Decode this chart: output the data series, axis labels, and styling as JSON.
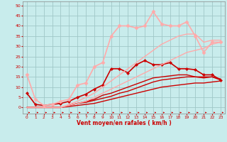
{
  "title": "",
  "xlabel": "Vent moyen/en rafales ( km/h )",
  "bg_color": "#c8ecec",
  "grid_color": "#a0c8c8",
  "x_ticks": [
    0,
    1,
    2,
    3,
    4,
    5,
    6,
    7,
    8,
    9,
    10,
    11,
    12,
    13,
    14,
    15,
    16,
    17,
    18,
    19,
    20,
    21,
    22,
    23
  ],
  "y_ticks": [
    0,
    5,
    10,
    15,
    20,
    25,
    30,
    35,
    40,
    45,
    50
  ],
  "ylim": [
    -3,
    52
  ],
  "xlim": [
    -0.5,
    23.5
  ],
  "series": [
    {
      "x": [
        0,
        1,
        2,
        3,
        4,
        5,
        6,
        7,
        8,
        9,
        10,
        11,
        12,
        13,
        14,
        15,
        16,
        17,
        18,
        19,
        20,
        21,
        22,
        23
      ],
      "y": [
        0,
        0,
        0,
        0,
        0,
        0.5,
        1,
        1.5,
        2,
        3,
        4,
        5,
        6,
        7,
        8,
        9,
        10,
        10.5,
        11,
        11.5,
        12,
        12,
        12.5,
        13
      ],
      "color": "#cc0000",
      "lw": 1.0,
      "marker": null
    },
    {
      "x": [
        0,
        1,
        2,
        3,
        4,
        5,
        6,
        7,
        8,
        9,
        10,
        11,
        12,
        13,
        14,
        15,
        16,
        17,
        18,
        19,
        20,
        21,
        22,
        23
      ],
      "y": [
        0,
        0,
        0,
        0,
        0,
        1,
        2,
        2.5,
        3.5,
        4.5,
        5.5,
        7,
        8,
        9.5,
        11,
        12.5,
        13.5,
        14,
        14.5,
        15,
        15,
        14.5,
        15,
        14
      ],
      "color": "#cc0000",
      "lw": 1.0,
      "marker": null
    },
    {
      "x": [
        0,
        1,
        2,
        3,
        4,
        5,
        6,
        7,
        8,
        9,
        10,
        11,
        12,
        13,
        14,
        15,
        16,
        17,
        18,
        19,
        20,
        21,
        22,
        23
      ],
      "y": [
        0,
        0,
        0,
        0,
        0,
        1,
        2,
        3,
        4,
        6,
        7,
        8.5,
        10,
        11.5,
        13,
        14.5,
        15,
        15.5,
        16,
        16,
        15,
        15,
        15,
        13.5
      ],
      "color": "#cc0000",
      "lw": 1.0,
      "marker": null
    },
    {
      "x": [
        0,
        1,
        2,
        3,
        4,
        5,
        6,
        7,
        8,
        9,
        10,
        11,
        12,
        13,
        14,
        15,
        16,
        17,
        18,
        19,
        20,
        21,
        22,
        23
      ],
      "y": [
        7,
        1.5,
        1,
        1.5,
        2,
        3,
        5,
        6.5,
        9,
        11,
        19,
        19,
        17,
        21,
        23,
        21,
        21,
        22,
        19,
        19,
        18.5,
        16,
        16,
        13.5
      ],
      "color": "#cc0000",
      "lw": 1.2,
      "marker": "D",
      "ms": 2.0
    },
    {
      "x": [
        0,
        1,
        2,
        3,
        4,
        5,
        6,
        7,
        8,
        9,
        10,
        11,
        12,
        13,
        14,
        15,
        16,
        17,
        18,
        19,
        20,
        21,
        22,
        23
      ],
      "y": [
        0,
        0,
        0,
        0,
        0,
        1,
        2,
        3,
        5,
        7,
        9,
        11,
        13,
        15,
        17,
        19,
        21,
        23,
        25,
        27,
        28,
        29,
        31,
        32
      ],
      "color": "#ffaaaa",
      "lw": 1.0,
      "marker": null
    },
    {
      "x": [
        0,
        1,
        2,
        3,
        4,
        5,
        6,
        7,
        8,
        9,
        10,
        11,
        12,
        13,
        14,
        15,
        16,
        17,
        18,
        19,
        20,
        21,
        22,
        23
      ],
      "y": [
        0,
        0,
        0,
        0,
        0,
        1.5,
        3,
        5,
        7,
        10,
        13,
        16,
        19,
        22,
        25,
        28,
        31,
        33,
        35,
        36,
        36,
        32,
        33,
        33
      ],
      "color": "#ffaaaa",
      "lw": 1.0,
      "marker": null
    },
    {
      "x": [
        0,
        1,
        2,
        3,
        4,
        5,
        6,
        7,
        8,
        9,
        10,
        11,
        12,
        13,
        14,
        15,
        16,
        17,
        18,
        19,
        20,
        21,
        22,
        23
      ],
      "y": [
        16,
        4,
        1,
        1.5,
        3,
        4,
        11,
        12,
        20,
        22,
        35,
        40,
        40,
        39,
        40,
        47,
        41,
        40,
        40,
        42,
        35,
        27,
        32,
        32
      ],
      "color": "#ffaaaa",
      "lw": 1.2,
      "marker": "D",
      "ms": 2.5
    }
  ]
}
